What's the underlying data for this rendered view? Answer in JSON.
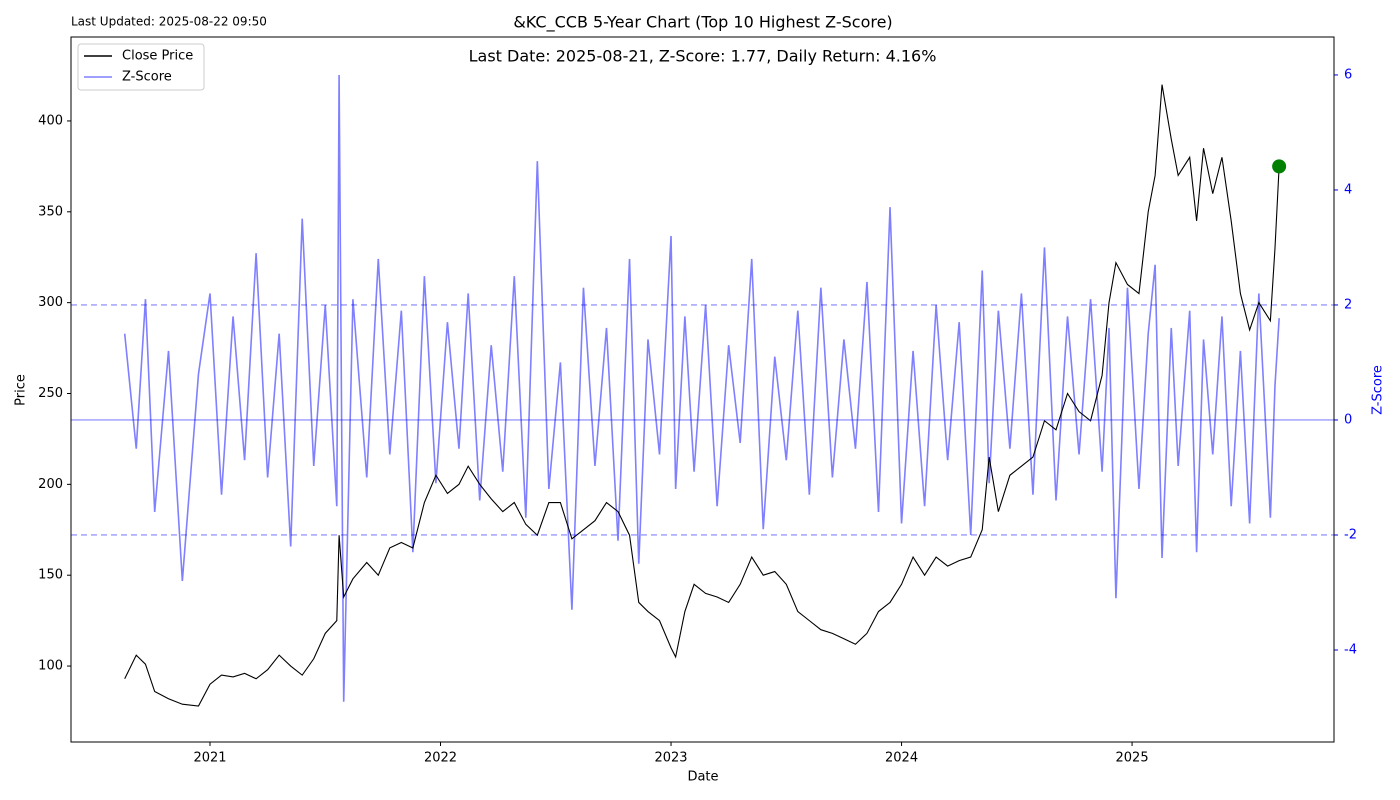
{
  "chart_data": {
    "type": "line",
    "title": "&KC_CCB 5-Year Chart (Top 10 Highest Z-Score)",
    "subtitle": "Last Updated: 2025-08-22 09:50",
    "annotation": "Last Date: 2025-08-21, Z-Score: 1.77, Daily Return: 4.16%",
    "xlabel": "Date",
    "ylabel": "Price",
    "y2label": "Z-Score",
    "x": [
      2020.63,
      2020.68,
      2020.72,
      2020.76,
      2020.82,
      2020.88,
      2020.95,
      2021.0,
      2021.05,
      2021.1,
      2021.15,
      2021.2,
      2021.25,
      2021.3,
      2021.35,
      2021.4,
      2021.45,
      2021.5,
      2021.55,
      2021.56,
      2021.58,
      2021.62,
      2021.68,
      2021.73,
      2021.78,
      2021.83,
      2021.88,
      2021.93,
      2021.98,
      2022.03,
      2022.08,
      2022.12,
      2022.17,
      2022.22,
      2022.27,
      2022.32,
      2022.37,
      2022.42,
      2022.47,
      2022.52,
      2022.57,
      2022.62,
      2022.67,
      2022.72,
      2022.77,
      2022.82,
      2022.86,
      2022.9,
      2022.95,
      2023.0,
      2023.02,
      2023.06,
      2023.1,
      2023.15,
      2023.2,
      2023.25,
      2023.3,
      2023.35,
      2023.4,
      2023.45,
      2023.5,
      2023.55,
      2023.6,
      2023.65,
      2023.7,
      2023.75,
      2023.8,
      2023.85,
      2023.9,
      2023.95,
      2024.0,
      2024.05,
      2024.1,
      2024.15,
      2024.2,
      2024.25,
      2024.3,
      2024.35,
      2024.38,
      2024.42,
      2024.47,
      2024.52,
      2024.57,
      2024.62,
      2024.67,
      2024.72,
      2024.77,
      2024.82,
      2024.87,
      2024.9,
      2024.93,
      2024.98,
      2025.03,
      2025.07,
      2025.1,
      2025.13,
      2025.17,
      2025.2,
      2025.25,
      2025.28,
      2025.31,
      2025.35,
      2025.39,
      2025.43,
      2025.47,
      2025.51,
      2025.55,
      2025.6,
      2025.62,
      2025.638
    ],
    "series": [
      {
        "name": "Close Price",
        "color": "black",
        "values": [
          93,
          106,
          101,
          86,
          82,
          79,
          78,
          90,
          95,
          94,
          96,
          93,
          98,
          106,
          100,
          95,
          104,
          118,
          125,
          172,
          138,
          148,
          157,
          150,
          165,
          168,
          165,
          190,
          205,
          195,
          200,
          210,
          200,
          192,
          185,
          190,
          178,
          172,
          190,
          190,
          170,
          175,
          180,
          190,
          185,
          172,
          135,
          130,
          125,
          110,
          105,
          130,
          145,
          140,
          138,
          135,
          145,
          160,
          150,
          152,
          145,
          130,
          125,
          120,
          118,
          115,
          112,
          118,
          130,
          135,
          145,
          160,
          150,
          160,
          155,
          158,
          160,
          175,
          215,
          185,
          205,
          210,
          215,
          235,
          230,
          250,
          240,
          235,
          260,
          300,
          322,
          310,
          305,
          350,
          370,
          420,
          390,
          370,
          380,
          345,
          385,
          360,
          380,
          345,
          305,
          285,
          300,
          290,
          330,
          375
        ]
      },
      {
        "name": "Z-Score",
        "color": "blue",
        "axis": "y2",
        "values": [
          1.5,
          -0.5,
          2.1,
          -1.6,
          1.2,
          -2.8,
          0.8,
          2.2,
          -1.3,
          1.8,
          -0.7,
          2.9,
          -1.0,
          1.5,
          -2.2,
          3.5,
          -0.8,
          2.0,
          -1.5,
          6.0,
          -4.9,
          2.1,
          -1.0,
          2.8,
          -0.6,
          1.9,
          -2.3,
          2.5,
          -1.1,
          1.7,
          -0.5,
          2.2,
          -1.4,
          1.3,
          -0.9,
          2.5,
          -1.7,
          4.5,
          -1.2,
          1.0,
          -3.3,
          2.3,
          -0.8,
          1.6,
          -2.1,
          2.8,
          -2.5,
          1.4,
          -0.6,
          3.2,
          -1.2,
          1.8,
          -0.9,
          2.0,
          -1.5,
          1.3,
          -0.4,
          2.8,
          -1.9,
          1.1,
          -0.7,
          1.9,
          -1.3,
          2.3,
          -1.0,
          1.4,
          -0.5,
          2.4,
          -1.6,
          3.7,
          -1.8,
          1.2,
          -1.5,
          2.0,
          -0.7,
          1.7,
          -2.0,
          2.6,
          -1.1,
          1.9,
          -0.5,
          2.2,
          -1.3,
          3.0,
          -1.4,
          1.8,
          -0.6,
          2.1,
          -0.9,
          1.6,
          -3.1,
          2.3,
          -1.2,
          1.5,
          2.7,
          -2.4,
          1.6,
          -0.8,
          1.9,
          -2.3,
          1.4,
          -0.6,
          1.8,
          -1.5,
          1.2,
          -1.8,
          2.2,
          -1.7,
          0.6,
          1.77
        ]
      }
    ],
    "y2_reference_lines": [
      {
        "value": 2,
        "dashed": true
      },
      {
        "value": 0,
        "dashed": false
      },
      {
        "value": -2,
        "dashed": true
      }
    ],
    "marker": {
      "x": 2025.638,
      "y": 375,
      "color": "green"
    },
    "xlim": [
      2020.397,
      2025.876
    ],
    "xticks": [
      2021,
      2022,
      2023,
      2024,
      2025
    ],
    "ylim": [
      58.2,
      446.2
    ],
    "yticks": [
      100,
      150,
      200,
      250,
      300,
      350,
      400
    ],
    "y2lim": [
      -5.6,
      6.66
    ],
    "y2ticks": [
      -4,
      -2,
      0,
      2,
      4,
      6
    ],
    "legend": "upper left"
  }
}
